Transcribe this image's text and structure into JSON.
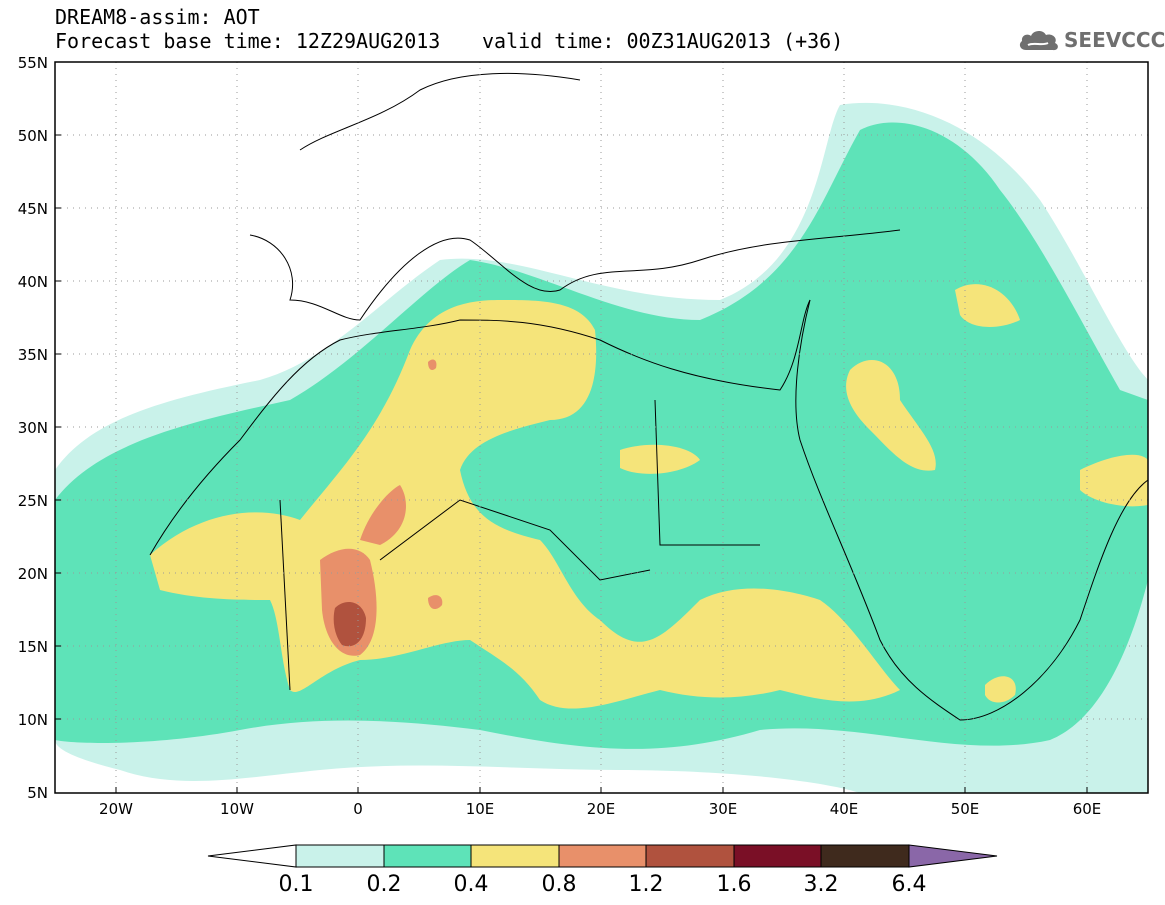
{
  "header": {
    "title": "DREAM8-assim: AOT",
    "base_time": "Forecast base time: 12Z29AUG2013",
    "valid_time": "valid time: 00Z31AUG2013 (+36)"
  },
  "logo": {
    "text": "SEEVCCC",
    "icon": "cloud-icon"
  },
  "map": {
    "lat_labels": [
      "55N",
      "50N",
      "45N",
      "40N",
      "35N",
      "30N",
      "25N",
      "20N",
      "15N",
      "10N",
      "5N"
    ],
    "lon_labels": [
      "20W",
      "10W",
      "0",
      "10E",
      "20E",
      "30E",
      "40E",
      "50E",
      "60E"
    ],
    "extent": {
      "lon": [
        -25,
        65
      ],
      "lat": [
        5,
        55
      ]
    }
  },
  "colorbar": {
    "labels": [
      "0.1",
      "0.2",
      "0.4",
      "0.8",
      "1.2",
      "1.6",
      "3.2",
      "6.4"
    ],
    "colors": [
      "#c9f2ea",
      "#5ee3b8",
      "#f5e47a",
      "#e8906a",
      "#b0523e",
      "#7a0f26",
      "#3f2a1d",
      "#8a67a8"
    ]
  }
}
